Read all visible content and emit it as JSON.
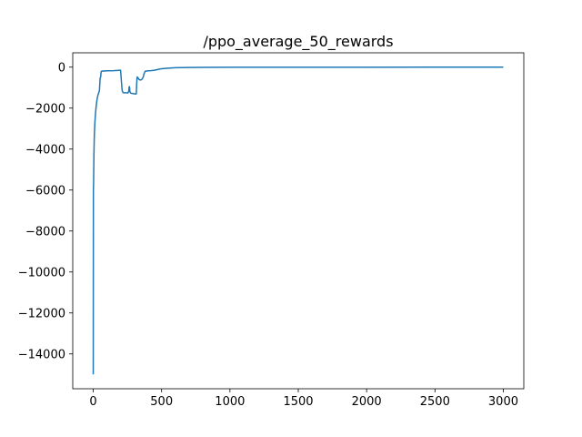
{
  "chart_data": {
    "type": "line",
    "title": "/ppo_average_50_rewards",
    "xlabel": "",
    "ylabel": "",
    "xlim": [
      -150,
      3150
    ],
    "ylim": [
      -15700,
      700
    ],
    "x_ticks": [
      0,
      500,
      1000,
      1500,
      2000,
      2500,
      3000
    ],
    "x_tick_labels": [
      "0",
      "500",
      "1000",
      "1500",
      "2000",
      "2500",
      "3000"
    ],
    "y_ticks": [
      0,
      -2000,
      -4000,
      -6000,
      -8000,
      -10000,
      -12000,
      -14000
    ],
    "y_tick_labels": [
      "0",
      "−2000",
      "−4000",
      "−6000",
      "−8000",
      "−10000",
      "−12000",
      "−14000"
    ],
    "grid": false,
    "legend": false,
    "colors": {
      "series": "#1f77b4",
      "axes": "#000000"
    },
    "series": [
      {
        "x": [
          0,
          1,
          2,
          3,
          5,
          8,
          12,
          16,
          20,
          25,
          30,
          35,
          40,
          45,
          48,
          50,
          53,
          55,
          57,
          60,
          65,
          70,
          80,
          100,
          150,
          200,
          210,
          212,
          215,
          220,
          230,
          240,
          250,
          255,
          260,
          262,
          264,
          266,
          268,
          270,
          272,
          275,
          280,
          290,
          300,
          310,
          315,
          318,
          320,
          322,
          325,
          330,
          335,
          340,
          345,
          350,
          355,
          360,
          365,
          370,
          380,
          400,
          420,
          450,
          480,
          500,
          550,
          600,
          650,
          700,
          800,
          1000,
          1500,
          2000,
          2500,
          3000
        ],
        "y": [
          -15000,
          -6000,
          -5800,
          -5300,
          -4200,
          -3300,
          -2700,
          -2300,
          -2000,
          -1700,
          -1500,
          -1350,
          -1250,
          -1150,
          -800,
          -550,
          -500,
          -450,
          -250,
          -200,
          -200,
          -190,
          -190,
          -180,
          -170,
          -150,
          -1050,
          -1150,
          -1200,
          -1250,
          -1250,
          -1250,
          -1260,
          -1250,
          -1150,
          -1000,
          -950,
          -1000,
          -1200,
          -1230,
          -1250,
          -1270,
          -1280,
          -1290,
          -1300,
          -1310,
          -1300,
          -800,
          -550,
          -480,
          -500,
          -550,
          -600,
          -620,
          -620,
          -620,
          -600,
          -550,
          -500,
          -350,
          -200,
          -180,
          -170,
          -150,
          -100,
          -80,
          -50,
          -30,
          -20,
          -15,
          -10,
          -8,
          -5,
          -3,
          -2,
          -2
        ]
      }
    ]
  }
}
